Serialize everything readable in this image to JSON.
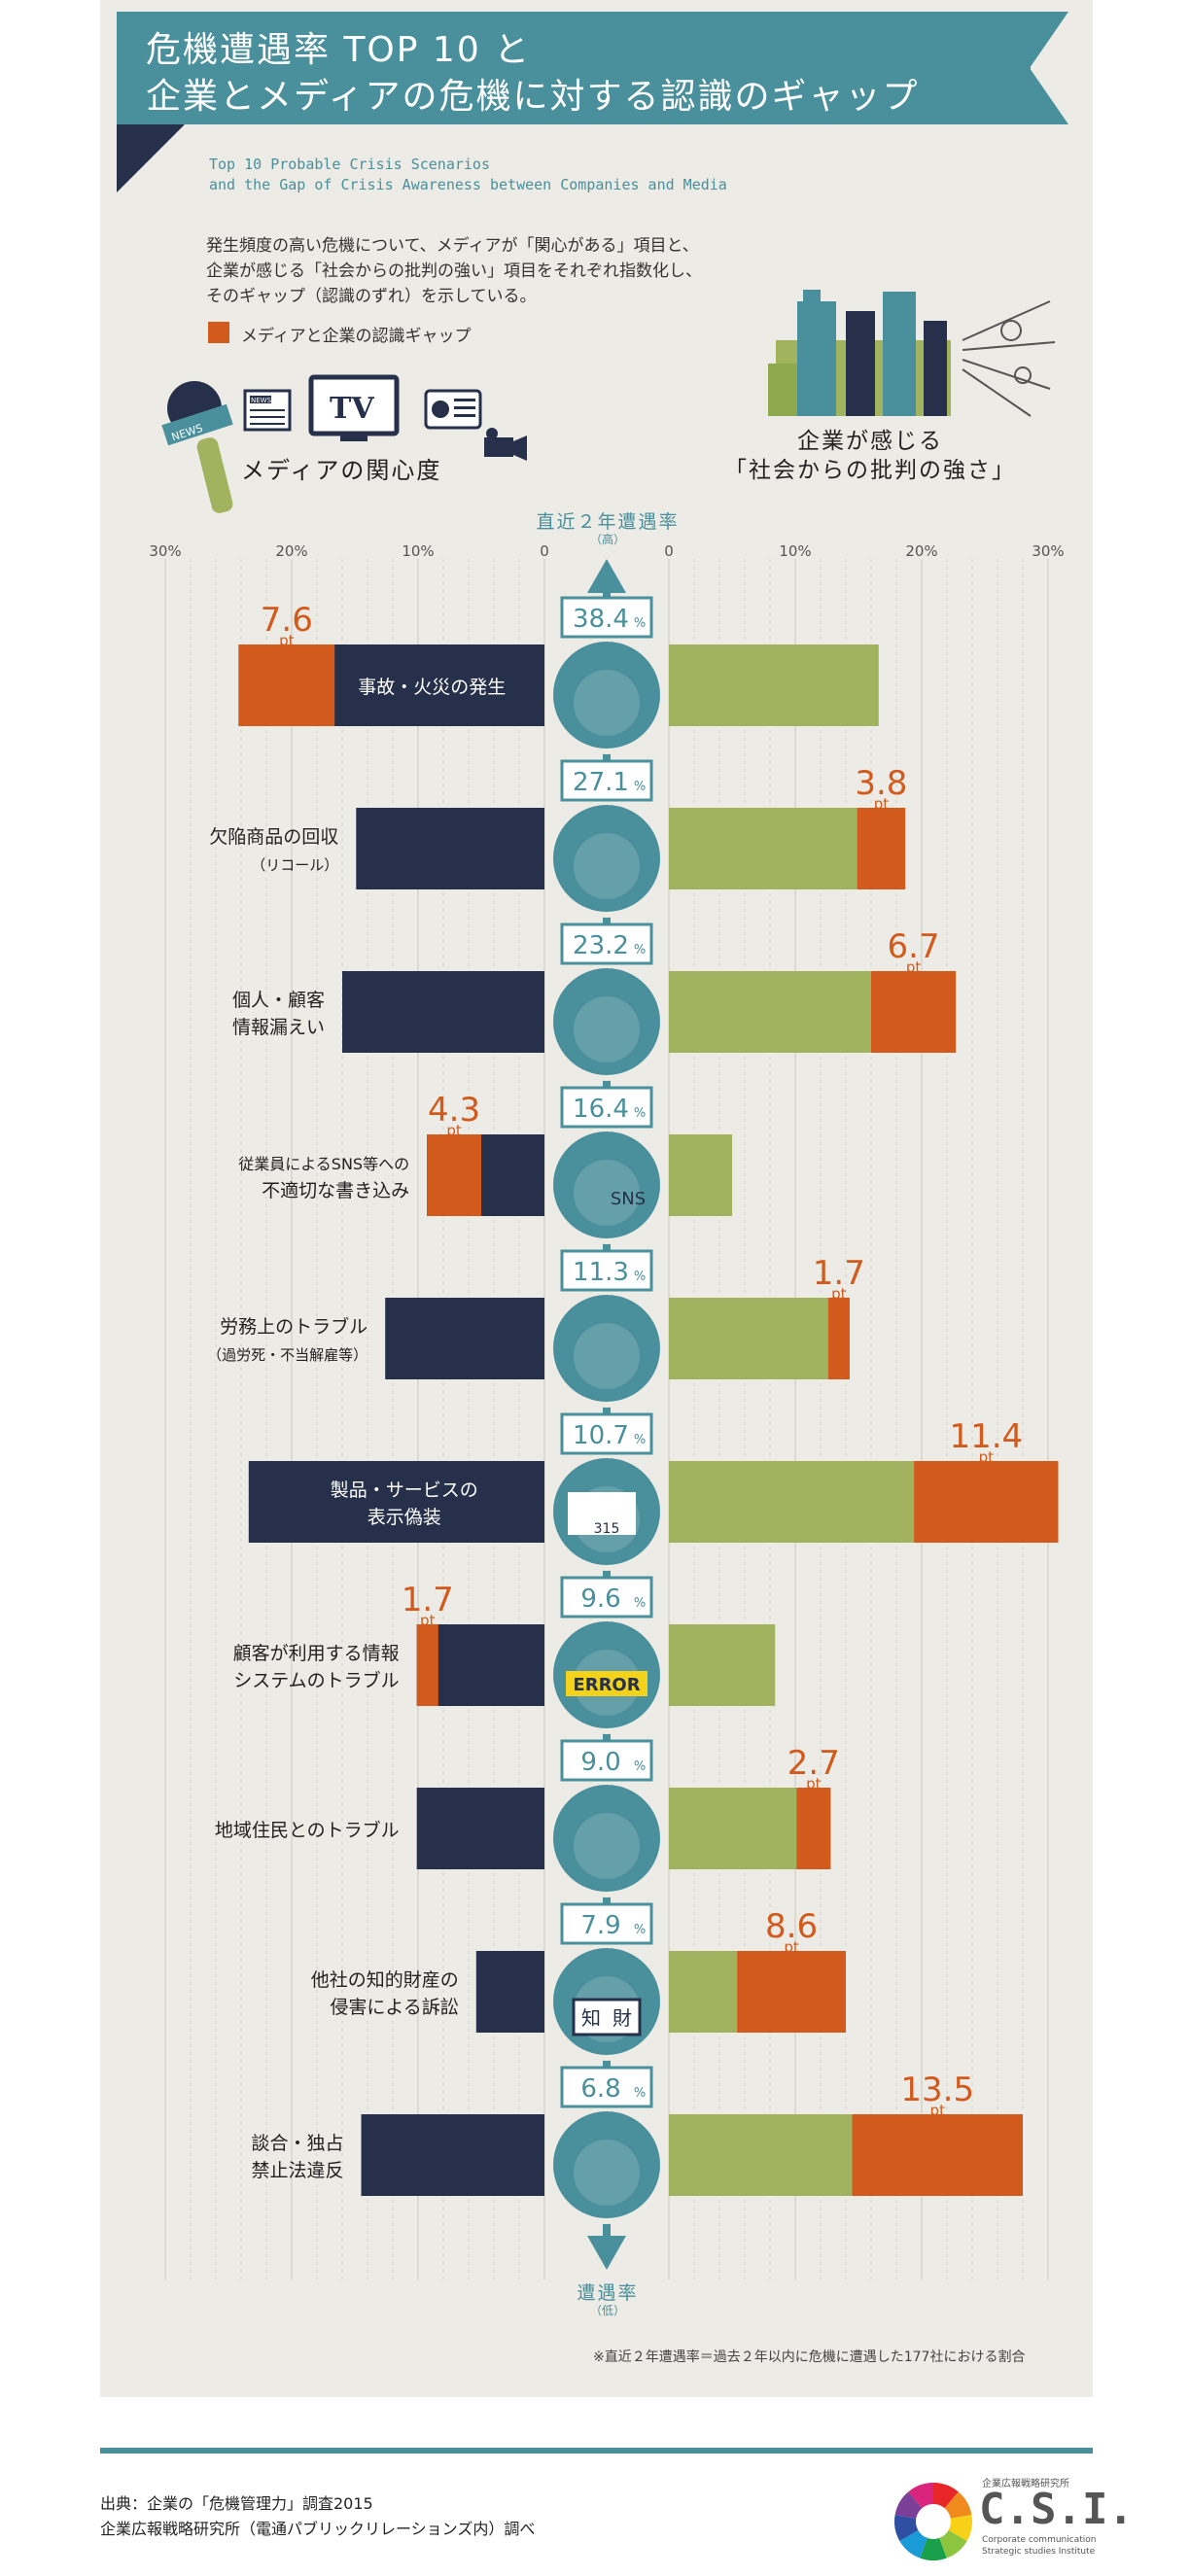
{
  "header": {
    "title_line1": "危機遭遇率 TOP 10 と",
    "title_line2": "企業とメディアの危機に対する認識のギャップ",
    "subtitle_en_line1": "Top 10 Probable Crisis Scenarios",
    "subtitle_en_line2": "and the Gap of Crisis Awareness between Companies and Media",
    "desc_line1": "発生頻度の高い危機について、メディアが「関心がある」項目と、",
    "desc_line2": "企業が感じる「社会からの批判の強い」項目をそれぞれ指数化し、",
    "desc_line3": "そのギャップ（認識のずれ）を示している。",
    "legend_gap": "メディアと企業の認識ギャップ",
    "media_label": "メディアの関心度",
    "company_label_line1": "企業が感じる",
    "company_label_line2": "「社会からの批判の強さ」",
    "media_icon_text_tv": "TV",
    "media_icon_text_news": "NEWS",
    "media_icon_text_paper": "NEWS"
  },
  "chart_data": {
    "type": "bar",
    "orientation": "diverging-horizontal",
    "center_axis_title": "直近２年遭遇率",
    "center_axis_top_sub": "（高）",
    "center_axis_bottom_title": "遭遇率",
    "center_axis_bottom_sub": "（低）",
    "tick_labels": [
      "30%",
      "20%",
      "10%",
      "0",
      "0",
      "10%",
      "20%",
      "30%"
    ],
    "xlim": [
      0,
      30
    ],
    "gap_unit": "pt",
    "colors": {
      "media": "#26304a",
      "company": "#a2b360",
      "gap": "#d35a1d",
      "center": "#4a909c"
    },
    "categories": [
      {
        "label": [
          "事故・火災の発生"
        ],
        "label_inside_bar": true,
        "rate": "38.4",
        "media": 24.2,
        "company": 16.6,
        "gap": "7.6",
        "gap_side": "media"
      },
      {
        "label": [
          "欠陥商品の回収",
          "（リコール）"
        ],
        "rate": "27.1",
        "media": 14.9,
        "company": 18.7,
        "gap": "3.8",
        "gap_side": "company"
      },
      {
        "label": [
          "個人・顧客",
          "情報漏えい"
        ],
        "rate": "23.2",
        "media": 16.0,
        "company": 22.7,
        "gap": "6.7",
        "gap_side": "company"
      },
      {
        "label": [
          "従業員によるSNS等への",
          "不適切な書き込み"
        ],
        "rate": "16.4",
        "media": 9.3,
        "company": 5.0,
        "gap": "4.3",
        "gap_side": "media"
      },
      {
        "label": [
          "労務上のトラブル",
          "（過労死・不当解雇等）"
        ],
        "rate": "11.3",
        "media": 12.6,
        "company": 14.3,
        "gap": "1.7",
        "gap_side": "company"
      },
      {
        "label": [
          "製品・サービスの",
          "表示偽装"
        ],
        "label_inside_bar": true,
        "rate": "10.7",
        "media": 23.4,
        "company": 30.8,
        "gap": "11.4",
        "gap_side": "company"
      },
      {
        "label": [
          "顧客が利用する情報",
          "システムのトラブル"
        ],
        "rate": "9.6",
        "media": 10.1,
        "company": 8.4,
        "gap": "1.7",
        "gap_side": "media"
      },
      {
        "label": [
          "地域住民とのトラブル"
        ],
        "rate": "9.0",
        "media": 10.1,
        "company": 12.8,
        "gap": "2.7",
        "gap_side": "company"
      },
      {
        "label": [
          "他社の知的財産の",
          "侵害による訴訟"
        ],
        "rate": "7.9",
        "media": 5.4,
        "company": 14.0,
        "gap": "8.6",
        "gap_side": "company"
      },
      {
        "label": [
          "談合・独占",
          "禁止法違反"
        ],
        "rate": "6.8",
        "media": 14.5,
        "company": 28.0,
        "gap": "13.5",
        "gap_side": "company"
      }
    ],
    "icon_texts": {
      "sns": "SNS",
      "error": "ERROR",
      "chizai_1": "知",
      "chizai_2": "財",
      "price": "315"
    }
  },
  "footnote": "※直近２年遭遇率＝過去２年以内に危機に遭遇した177社における割合",
  "source": {
    "line1": "出典：企業の「危機管理力」調査2015",
    "line2": "企業広報戦略研究所（電通パブリックリレーションズ内）調べ"
  },
  "logo": {
    "org_name": "企業広報戦略研究所",
    "mark": "C.S.I.",
    "en_line1": "Corporate communication",
    "en_line2": "Strategic studies Institute",
    "ring_colors": [
      "#e8262a",
      "#f08a1c",
      "#f7d117",
      "#8cc63f",
      "#1aa04a",
      "#1a9bd7",
      "#2e4fa2",
      "#7b3f98",
      "#d9257b"
    ]
  }
}
